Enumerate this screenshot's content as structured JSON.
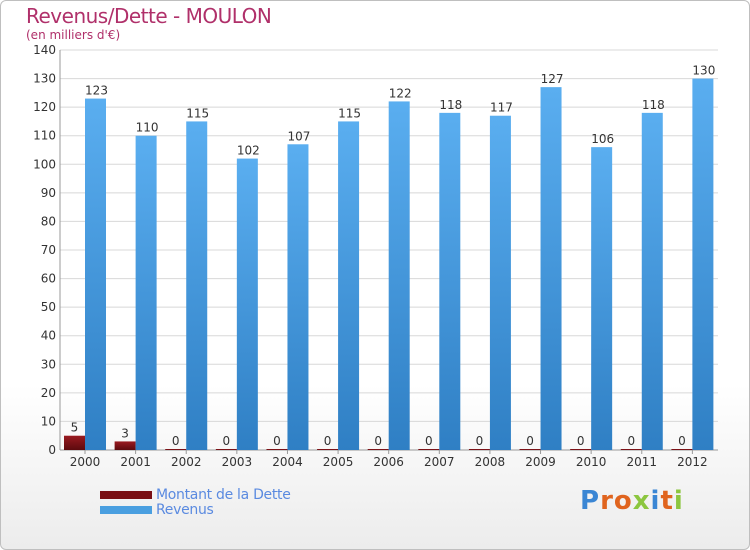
{
  "title": "Revenus/Dette - MOULON",
  "subtitle": "(en milliers d'€)",
  "legend": {
    "debt_label": "Montant de la Dette",
    "revenue_label": "Revenus"
  },
  "logo": {
    "text": "Proxiti",
    "letters": [
      "P",
      "r",
      "o",
      "x",
      "i",
      "t",
      "i"
    ]
  },
  "colors": {
    "debt": "#7a0f14",
    "revenue": "#4a9fe0",
    "grid": "#d8d8d8",
    "title": "#b0306a",
    "logo": [
      "#3a86d4",
      "#e0641e",
      "#e0641e",
      "#8cc63f",
      "#3a86d4",
      "#e0641e",
      "#8cc63f"
    ]
  },
  "chart_data": {
    "type": "bar",
    "title": "Revenus/Dette - MOULON",
    "ylabel": "(en milliers d'€)",
    "categories": [
      "2000",
      "2001",
      "2002",
      "2003",
      "2004",
      "2005",
      "2006",
      "2007",
      "2008",
      "2009",
      "2010",
      "2011",
      "2012"
    ],
    "series": [
      {
        "name": "Montant de la Dette",
        "values": [
          5,
          3,
          0,
          0,
          0,
          0,
          0,
          0,
          0,
          0,
          0,
          0,
          0
        ]
      },
      {
        "name": "Revenus",
        "values": [
          123,
          110,
          115,
          102,
          107,
          115,
          122,
          118,
          117,
          127,
          106,
          118,
          130
        ]
      }
    ],
    "ylim": [
      0,
      140
    ],
    "yticks": [
      0,
      10,
      20,
      30,
      40,
      50,
      60,
      70,
      80,
      90,
      100,
      110,
      120,
      130,
      140
    ],
    "grid": true,
    "legend_position": "bottom-left"
  }
}
